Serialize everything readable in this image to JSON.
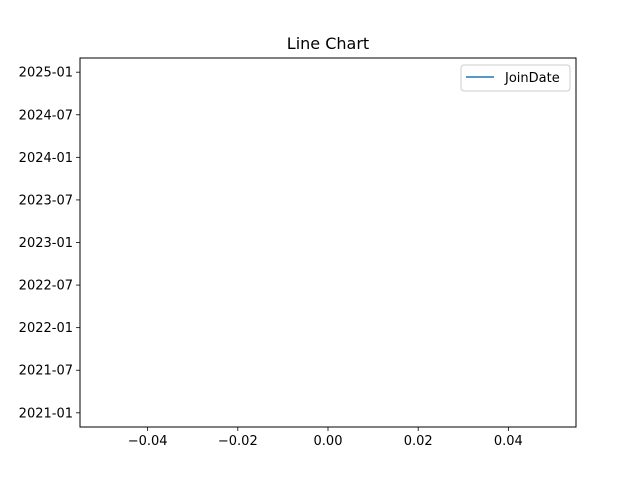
{
  "chart_data": {
    "type": "line",
    "title": "Line Chart",
    "xlabel": "",
    "ylabel": "",
    "x_ticks": [
      -0.04,
      -0.02,
      0.0,
      0.02,
      0.04
    ],
    "x_tick_labels": [
      "−0.04",
      "−0.02",
      "0.00",
      "0.02",
      "0.04"
    ],
    "xlim": [
      -0.055,
      0.055
    ],
    "y_scale": "date",
    "y_ticks": [
      "2021-01",
      "2021-07",
      "2022-01",
      "2022-07",
      "2023-01",
      "2023-07",
      "2024-01",
      "2024-07",
      "2025-01"
    ],
    "ylim": [
      "2020-11",
      "2025-03"
    ],
    "grid": false,
    "legend_position": "top-right",
    "series": [
      {
        "name": "JoinDate",
        "color": "#1f77b4",
        "x": [],
        "y": []
      }
    ]
  }
}
